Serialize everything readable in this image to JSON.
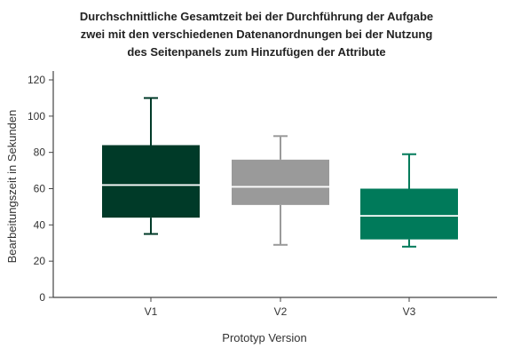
{
  "chart_data": {
    "type": "box",
    "title_lines": [
      "Durchschnittliche Gesamtzeit bei der Durchführung der Aufgabe",
      "zwei mit den verschiedenen Datenanordnungen bei der Nutzung",
      "des Seitenpanels zum Hinzufügen der Attribute"
    ],
    "xlabel": "Prototyp Version",
    "ylabel": "Bearbeitungszeit in Sekunden",
    "ylim": [
      0,
      120
    ],
    "yticks": [
      0,
      20,
      40,
      60,
      80,
      100,
      120
    ],
    "grid": false,
    "categories": [
      "V1",
      "V2",
      "V3"
    ],
    "boxes": [
      {
        "category": "V1",
        "min": 35,
        "q1": 44,
        "median": 62,
        "q3": 84,
        "max": 110,
        "color": "#003a28"
      },
      {
        "category": "V2",
        "min": 29,
        "q1": 51,
        "median": 61,
        "q3": 76,
        "max": 89,
        "color": "#9a9a9a"
      },
      {
        "category": "V3",
        "min": 28,
        "q1": 32,
        "median": 45,
        "q3": 60,
        "max": 79,
        "color": "#007a5a"
      }
    ]
  }
}
